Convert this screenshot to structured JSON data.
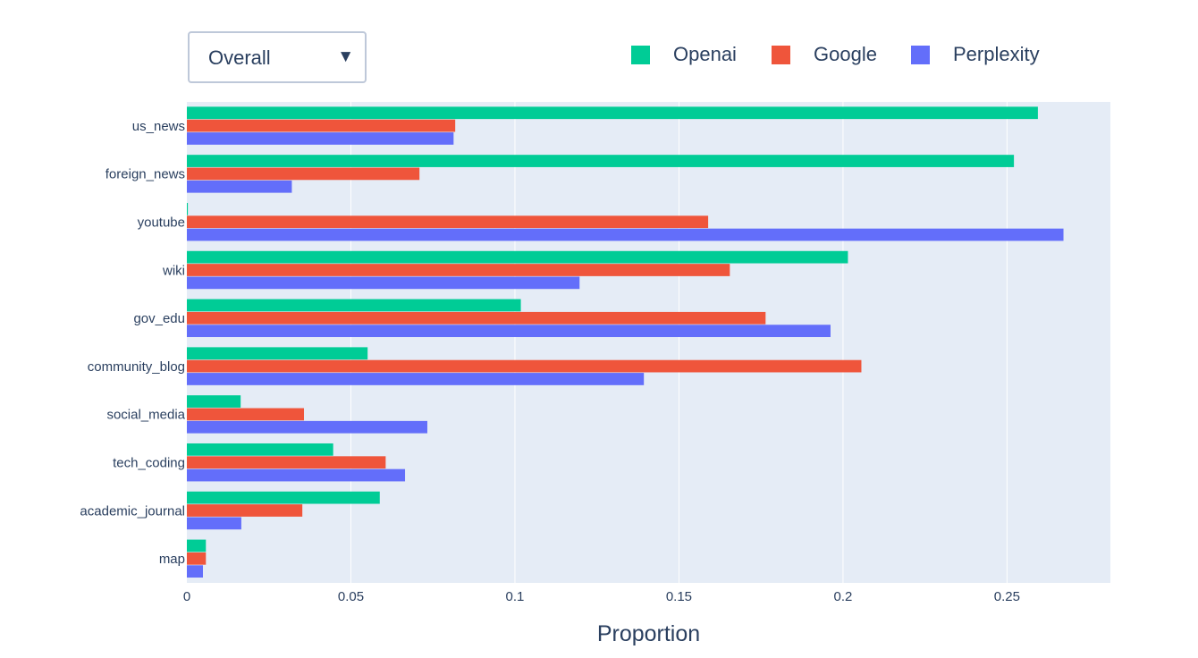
{
  "dropdown": {
    "selected": "Overall"
  },
  "chart_data": {
    "type": "bar",
    "orientation": "horizontal",
    "categories": [
      "us_news",
      "foreign_news",
      "youtube",
      "wiki",
      "gov_edu",
      "community_blog",
      "social_media",
      "tech_coding",
      "academic_journal",
      "map"
    ],
    "series": [
      {
        "name": "Openai",
        "color": "#00cc96",
        "values": [
          0.2594,
          0.2521,
          0.0003,
          0.2015,
          0.1018,
          0.0551,
          0.0164,
          0.0446,
          0.0588,
          0.0058
        ]
      },
      {
        "name": "Google",
        "color": "#ef553b",
        "values": [
          0.0818,
          0.0709,
          0.1589,
          0.1655,
          0.1764,
          0.2056,
          0.0357,
          0.0606,
          0.0352,
          0.0058
        ]
      },
      {
        "name": "Perplexity",
        "color": "#636efa",
        "values": [
          0.0813,
          0.032,
          0.2672,
          0.1197,
          0.1962,
          0.1393,
          0.0733,
          0.0665,
          0.0166,
          0.0049
        ]
      }
    ],
    "xlabel": "Proportion",
    "xlim": [
      0,
      0.2815
    ],
    "xticks": [
      0,
      0.05,
      0.1,
      0.15,
      0.2,
      0.25
    ],
    "xtick_labels": [
      "0",
      "0.05",
      "0.1",
      "0.15",
      "0.2",
      "0.25"
    ],
    "legend_position": "top-right",
    "grid": true,
    "plot_background": "#e5ecf6"
  }
}
